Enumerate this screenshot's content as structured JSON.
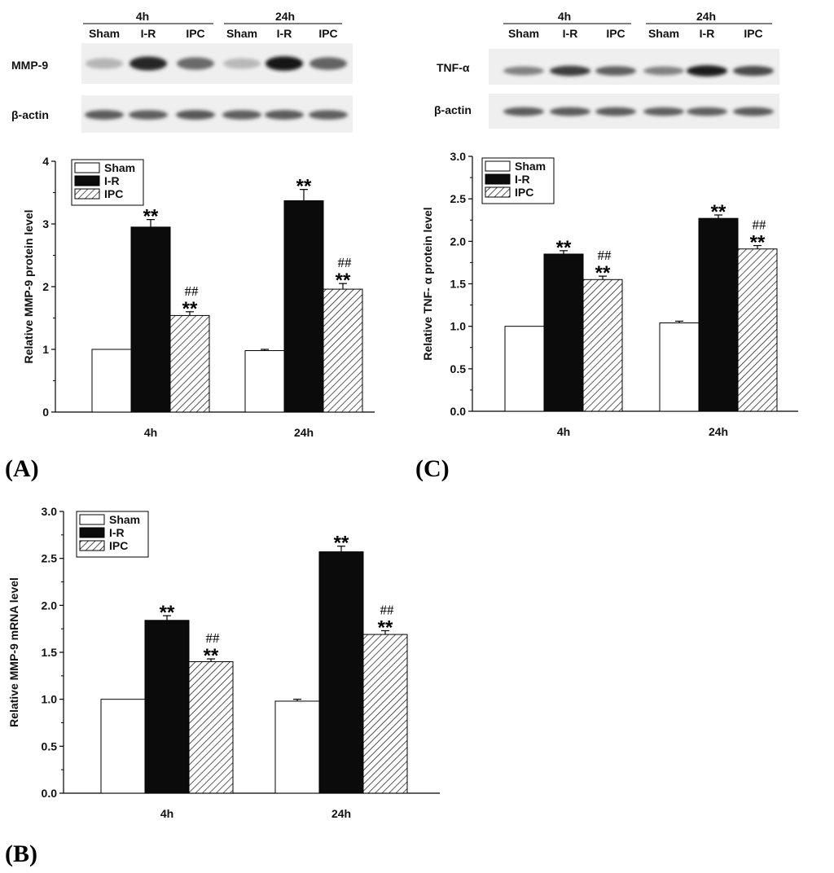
{
  "chart_data": [
    {
      "panel": "(A)",
      "type": "bar",
      "blot": {
        "groups": [
          "4h",
          "24h"
        ],
        "lanes": [
          "Sham",
          "I-R",
          "IPC",
          "Sham",
          "I-R",
          "IPC"
        ],
        "rows": [
          {
            "label": "MMP-9",
            "intensity": [
              0.22,
              0.85,
              0.55,
              0.2,
              0.92,
              0.58
            ]
          },
          {
            "label": "β-actin",
            "intensity": [
              0.62,
              0.6,
              0.63,
              0.6,
              0.62,
              0.6
            ]
          }
        ]
      },
      "categories": [
        "4h",
        "24h"
      ],
      "series": [
        {
          "name": "Sham",
          "values": [
            1.0,
            0.98
          ],
          "errors": [
            0,
            0.02
          ]
        },
        {
          "name": "I-R",
          "values": [
            2.95,
            3.37
          ],
          "errors": [
            0.12,
            0.18
          ]
        },
        {
          "name": "IPC",
          "values": [
            1.54,
            1.96
          ],
          "errors": [
            0.06,
            0.09
          ]
        }
      ],
      "significance": [
        {
          "series": 1,
          "category": 0,
          "star": "**",
          "hash": ""
        },
        {
          "series": 2,
          "category": 0,
          "star": "**",
          "hash": "##"
        },
        {
          "series": 1,
          "category": 1,
          "star": "**",
          "hash": ""
        },
        {
          "series": 2,
          "category": 1,
          "star": "**",
          "hash": "##"
        }
      ],
      "ylabel": "Relative MMP-9 protein level",
      "ylim": [
        0,
        4
      ],
      "yticks": [
        "0",
        "1",
        "2",
        "3",
        "4"
      ],
      "legend": "top-left"
    },
    {
      "panel": "(C)",
      "type": "bar",
      "blot": {
        "groups": [
          "4h",
          "24h"
        ],
        "lanes": [
          "Sham",
          "I-R",
          "IPC",
          "Sham",
          "I-R",
          "IPC"
        ],
        "rows": [
          {
            "label": "TNF-α",
            "intensity": [
              0.45,
              0.75,
              0.6,
              0.45,
              0.9,
              0.7
            ]
          },
          {
            "label": "β-actin",
            "intensity": [
              0.62,
              0.62,
              0.62,
              0.6,
              0.6,
              0.62
            ]
          }
        ]
      },
      "categories": [
        "4h",
        "24h"
      ],
      "series": [
        {
          "name": "Sham",
          "values": [
            1.0,
            1.04
          ],
          "errors": [
            0,
            0.02
          ]
        },
        {
          "name": "I-R",
          "values": [
            1.85,
            2.27
          ],
          "errors": [
            0.04,
            0.04
          ]
        },
        {
          "name": "IPC",
          "values": [
            1.55,
            1.91
          ],
          "errors": [
            0.04,
            0.04
          ]
        }
      ],
      "significance": [
        {
          "series": 1,
          "category": 0,
          "star": "**",
          "hash": ""
        },
        {
          "series": 2,
          "category": 0,
          "star": "**",
          "hash": "##"
        },
        {
          "series": 1,
          "category": 1,
          "star": "**",
          "hash": ""
        },
        {
          "series": 2,
          "category": 1,
          "star": "**",
          "hash": "##"
        }
      ],
      "ylabel": "Relative TNF- α protein level",
      "ylim": [
        0,
        3
      ],
      "yticks": [
        "0.0",
        "0.5",
        "1.0",
        "1.5",
        "2.0",
        "2.5",
        "3.0"
      ],
      "legend": "top-left"
    },
    {
      "panel": "(B)",
      "type": "bar",
      "categories": [
        "4h",
        "24h"
      ],
      "series": [
        {
          "name": "Sham",
          "values": [
            1.0,
            0.98
          ],
          "errors": [
            0,
            0.02
          ]
        },
        {
          "name": "I-R",
          "values": [
            1.84,
            2.57
          ],
          "errors": [
            0.05,
            0.06
          ]
        },
        {
          "name": "IPC",
          "values": [
            1.4,
            1.69
          ],
          "errors": [
            0.03,
            0.04
          ]
        }
      ],
      "significance": [
        {
          "series": 1,
          "category": 0,
          "star": "**",
          "hash": ""
        },
        {
          "series": 2,
          "category": 0,
          "star": "**",
          "hash": "##"
        },
        {
          "series": 1,
          "category": 1,
          "star": "**",
          "hash": ""
        },
        {
          "series": 2,
          "category": 1,
          "star": "**",
          "hash": "##"
        }
      ],
      "ylabel": "Relative MMP-9 mRNA level",
      "ylim": [
        0,
        3
      ],
      "yticks": [
        "0.0",
        "0.5",
        "1.0",
        "1.5",
        "2.0",
        "2.5",
        "3.0"
      ],
      "legend": "top-left"
    }
  ]
}
